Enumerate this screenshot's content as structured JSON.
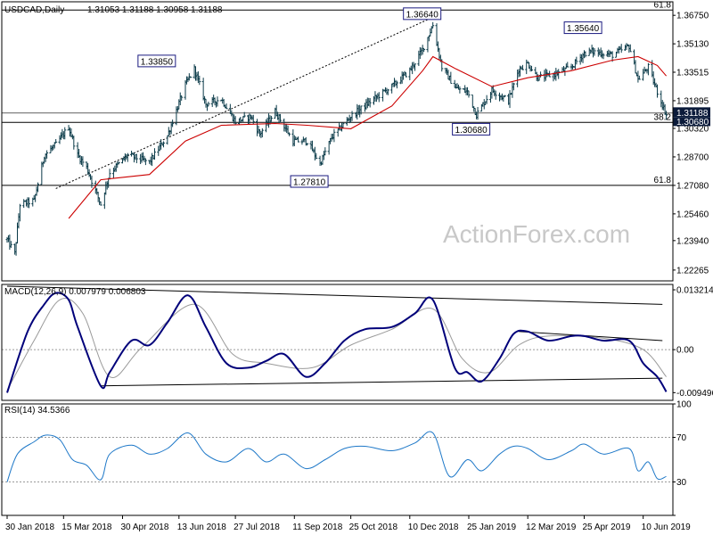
{
  "header": {
    "symbol": "USDCAD,Daily",
    "ohlc": "1.31053 1.31188 1.30958 1.31188"
  },
  "watermark": "ActionForex.com",
  "colors": {
    "price_bars": "#0a3a48",
    "ma_line": "#cc0000",
    "macd_line": "#00007a",
    "signal_line": "#9a9a9a",
    "rsi_line": "#1e78c8",
    "label_border": "#1a1a80",
    "current_price_box": "#0a1a3a",
    "current_price_text": "#ffffff"
  },
  "chart_data": [
    {
      "panel": "price",
      "type": "ohlc",
      "title": "USDCAD,Daily",
      "ylim": [
        1.2165,
        1.3752
      ],
      "yticks": [
        "1.36750",
        "1.35130",
        "1.33515",
        "1.31895",
        "1.30320",
        "1.28700",
        "1.27080",
        "1.25460",
        "1.23940",
        "1.22265"
      ],
      "fib_levels": [
        {
          "label": "61.8",
          "y": 1.3705
        },
        {
          "label": "38.2",
          "y": 1.3066
        },
        {
          "label": "61.8",
          "y": 1.2708
        }
      ],
      "price_labels": [
        {
          "label": "1.33850",
          "x": "2018-06-04",
          "y": 1.3385
        },
        {
          "label": "1.36640",
          "x": "2018-12-28",
          "y": 1.3664
        },
        {
          "label": "1.27810",
          "x": "2018-10-01",
          "y": 1.2781
        },
        {
          "label": "1.30680",
          "x": "2019-01-31",
          "y": 1.3068
        },
        {
          "label": "1.35640",
          "x": "2019-05-01",
          "y": 1.3564
        }
      ],
      "current_price": "1.31188",
      "current_price_secondary": "1.30680",
      "trendline": [
        {
          "x": "2018-03-09",
          "y": 1.269
        },
        {
          "x": "2018-12-28",
          "y": 1.3664
        }
      ],
      "anchors": [
        {
          "x": "2018-01-30",
          "y": 1.24
        },
        {
          "x": "2018-02-05",
          "y": 1.232
        },
        {
          "x": "2018-02-09",
          "y": 1.26
        },
        {
          "x": "2018-02-20",
          "y": 1.262
        },
        {
          "x": "2018-02-28",
          "y": 1.288
        },
        {
          "x": "2018-03-09",
          "y": 1.294
        },
        {
          "x": "2018-03-19",
          "y": 1.304
        },
        {
          "x": "2018-03-26",
          "y": 1.288
        },
        {
          "x": "2018-04-02",
          "y": 1.281
        },
        {
          "x": "2018-04-13",
          "y": 1.26
        },
        {
          "x": "2018-04-20",
          "y": 1.278
        },
        {
          "x": "2018-05-04",
          "y": 1.288
        },
        {
          "x": "2018-05-21",
          "y": 1.284
        },
        {
          "x": "2018-06-04",
          "y": 1.299
        },
        {
          "x": "2018-06-18",
          "y": 1.328
        },
        {
          "x": "2018-06-25",
          "y": 1.337
        },
        {
          "x": "2018-07-04",
          "y": 1.317
        },
        {
          "x": "2018-07-16",
          "y": 1.32
        },
        {
          "x": "2018-07-27",
          "y": 1.307
        },
        {
          "x": "2018-08-08",
          "y": 1.31
        },
        {
          "x": "2018-08-15",
          "y": 1.3
        },
        {
          "x": "2018-08-27",
          "y": 1.313
        },
        {
          "x": "2018-09-10",
          "y": 1.296
        },
        {
          "x": "2018-09-21",
          "y": 1.296
        },
        {
          "x": "2018-10-01",
          "y": 1.283
        },
        {
          "x": "2018-10-10",
          "y": 1.298
        },
        {
          "x": "2018-10-25",
          "y": 1.31
        },
        {
          "x": "2018-11-12",
          "y": 1.32
        },
        {
          "x": "2018-11-26",
          "y": 1.327
        },
        {
          "x": "2018-12-10",
          "y": 1.336
        },
        {
          "x": "2018-12-20",
          "y": 1.348
        },
        {
          "x": "2018-12-28",
          "y": 1.362
        },
        {
          "x": "2019-01-04",
          "y": 1.338
        },
        {
          "x": "2019-01-15",
          "y": 1.326
        },
        {
          "x": "2019-01-24",
          "y": 1.324
        },
        {
          "x": "2019-01-31",
          "y": 1.311
        },
        {
          "x": "2019-02-12",
          "y": 1.325
        },
        {
          "x": "2019-02-25",
          "y": 1.319
        },
        {
          "x": "2019-03-05",
          "y": 1.337
        },
        {
          "x": "2019-03-12",
          "y": 1.34
        },
        {
          "x": "2019-03-20",
          "y": 1.332
        },
        {
          "x": "2019-04-02",
          "y": 1.334
        },
        {
          "x": "2019-04-15",
          "y": 1.338
        },
        {
          "x": "2019-04-25",
          "y": 1.346
        },
        {
          "x": "2019-05-01",
          "y": 1.347
        },
        {
          "x": "2019-05-17",
          "y": 1.345
        },
        {
          "x": "2019-05-30",
          "y": 1.35
        },
        {
          "x": "2019-06-06",
          "y": 1.331
        },
        {
          "x": "2019-06-14",
          "y": 1.338
        },
        {
          "x": "2019-06-21",
          "y": 1.324
        },
        {
          "x": "2019-06-28",
          "y": 1.311
        }
      ],
      "moving_average": [
        {
          "x": "2018-03-19",
          "y": 1.252
        },
        {
          "x": "2018-04-13",
          "y": 1.274
        },
        {
          "x": "2018-05-21",
          "y": 1.277
        },
        {
          "x": "2018-06-18",
          "y": 1.296
        },
        {
          "x": "2018-07-16",
          "y": 1.305
        },
        {
          "x": "2018-08-27",
          "y": 1.306
        },
        {
          "x": "2018-09-21",
          "y": 1.305
        },
        {
          "x": "2018-10-25",
          "y": 1.303
        },
        {
          "x": "2018-11-26",
          "y": 1.316
        },
        {
          "x": "2018-12-20",
          "y": 1.336
        },
        {
          "x": "2018-12-28",
          "y": 1.344
        },
        {
          "x": "2019-01-15",
          "y": 1.337
        },
        {
          "x": "2019-02-12",
          "y": 1.327
        },
        {
          "x": "2019-03-12",
          "y": 1.332
        },
        {
          "x": "2019-04-15",
          "y": 1.336
        },
        {
          "x": "2019-05-17",
          "y": 1.342
        },
        {
          "x": "2019-06-06",
          "y": 1.344
        },
        {
          "x": "2019-06-21",
          "y": 1.339
        },
        {
          "x": "2019-06-28",
          "y": 1.333
        }
      ]
    },
    {
      "panel": "macd",
      "type": "line",
      "title": "MACD(12,26,9) 0.007979 0.006803",
      "ylim": [
        -0.0112,
        0.0144
      ],
      "yticks": [
        "0.013214",
        "0.00",
        "-0.009496"
      ],
      "series": [
        {
          "name": "MACD",
          "points": [
            {
              "x": "2018-01-30",
              "y": -0.0095
            },
            {
              "x": "2018-02-15",
              "y": 0.004
            },
            {
              "x": "2018-02-28",
              "y": 0.01
            },
            {
              "x": "2018-03-09",
              "y": 0.0125
            },
            {
              "x": "2018-03-19",
              "y": 0.011
            },
            {
              "x": "2018-03-26",
              "y": 0.005
            },
            {
              "x": "2018-04-13",
              "y": -0.008
            },
            {
              "x": "2018-04-20",
              "y": -0.005
            },
            {
              "x": "2018-05-07",
              "y": 0.002
            },
            {
              "x": "2018-05-21",
              "y": 0.001
            },
            {
              "x": "2018-06-04",
              "y": 0.006
            },
            {
              "x": "2018-06-20",
              "y": 0.012
            },
            {
              "x": "2018-07-04",
              "y": 0.005
            },
            {
              "x": "2018-07-20",
              "y": -0.003
            },
            {
              "x": "2018-08-06",
              "y": -0.004
            },
            {
              "x": "2018-08-20",
              "y": -0.0025
            },
            {
              "x": "2018-09-03",
              "y": -0.001
            },
            {
              "x": "2018-09-20",
              "y": -0.006
            },
            {
              "x": "2018-10-05",
              "y": -0.003
            },
            {
              "x": "2018-10-20",
              "y": 0.002
            },
            {
              "x": "2018-11-05",
              "y": 0.0045
            },
            {
              "x": "2018-11-26",
              "y": 0.005
            },
            {
              "x": "2018-12-14",
              "y": 0.008
            },
            {
              "x": "2018-12-28",
              "y": 0.011
            },
            {
              "x": "2019-01-14",
              "y": -0.004
            },
            {
              "x": "2019-01-24",
              "y": -0.005
            },
            {
              "x": "2019-02-04",
              "y": -0.007
            },
            {
              "x": "2019-02-18",
              "y": -0.002
            },
            {
              "x": "2019-03-01",
              "y": 0.0035
            },
            {
              "x": "2019-03-12",
              "y": 0.004
            },
            {
              "x": "2019-03-28",
              "y": 0.002
            },
            {
              "x": "2019-04-15",
              "y": 0.003
            },
            {
              "x": "2019-04-25",
              "y": 0.003
            },
            {
              "x": "2019-05-10",
              "y": 0.002
            },
            {
              "x": "2019-05-30",
              "y": 0.002
            },
            {
              "x": "2019-06-10",
              "y": -0.003
            },
            {
              "x": "2019-06-21",
              "y": -0.006
            },
            {
              "x": "2019-06-28",
              "y": -0.0093
            }
          ]
        },
        {
          "name": "Signal",
          "points": [
            {
              "x": "2018-01-30",
              "y": -0.009
            },
            {
              "x": "2018-02-20",
              "y": 0.002
            },
            {
              "x": "2018-03-12",
              "y": 0.011
            },
            {
              "x": "2018-03-30",
              "y": 0.008
            },
            {
              "x": "2018-04-20",
              "y": -0.006
            },
            {
              "x": "2018-05-15",
              "y": 0.0005
            },
            {
              "x": "2018-06-25",
              "y": 0.01
            },
            {
              "x": "2018-07-25",
              "y": -0.001
            },
            {
              "x": "2018-08-20",
              "y": -0.003
            },
            {
              "x": "2018-09-25",
              "y": -0.004
            },
            {
              "x": "2018-10-25",
              "y": 0.001
            },
            {
              "x": "2018-11-26",
              "y": 0.0045
            },
            {
              "x": "2018-12-28",
              "y": 0.009
            },
            {
              "x": "2019-01-20",
              "y": -0.002
            },
            {
              "x": "2019-02-10",
              "y": -0.005
            },
            {
              "x": "2019-03-05",
              "y": 0.001
            },
            {
              "x": "2019-03-28",
              "y": 0.003
            },
            {
              "x": "2019-05-10",
              "y": 0.0025
            },
            {
              "x": "2019-06-10",
              "y": 0.0
            },
            {
              "x": "2019-06-28",
              "y": -0.006
            }
          ]
        }
      ],
      "lines": [
        [
          {
            "x": "2018-01-30",
            "y": 0.014
          },
          {
            "x": "2019-06-25",
            "y": 0.01
          }
        ],
        [
          {
            "x": "2018-04-13",
            "y": -0.008
          },
          {
            "x": "2019-06-25",
            "y": -0.0063
          }
        ],
        [
          {
            "x": "2019-03-05",
            "y": 0.004
          },
          {
            "x": "2019-06-25",
            "y": 0.002
          }
        ]
      ]
    },
    {
      "panel": "rsi",
      "type": "line",
      "title": "RSI(14) 34.5366",
      "ylim": [
        0,
        100
      ],
      "yticks": [
        "100",
        "70",
        "30",
        "0"
      ],
      "levels": [
        70,
        30
      ],
      "series": [
        {
          "name": "RSI",
          "points": [
            {
              "x": "2018-01-30",
              "y": 30
            },
            {
              "x": "2018-02-07",
              "y": 55
            },
            {
              "x": "2018-02-20",
              "y": 66
            },
            {
              "x": "2018-03-01",
              "y": 72
            },
            {
              "x": "2018-03-12",
              "y": 68
            },
            {
              "x": "2018-03-22",
              "y": 50
            },
            {
              "x": "2018-04-02",
              "y": 45
            },
            {
              "x": "2018-04-13",
              "y": 32
            },
            {
              "x": "2018-04-20",
              "y": 55
            },
            {
              "x": "2018-05-07",
              "y": 63
            },
            {
              "x": "2018-05-21",
              "y": 55
            },
            {
              "x": "2018-06-04",
              "y": 60
            },
            {
              "x": "2018-06-20",
              "y": 74
            },
            {
              "x": "2018-07-04",
              "y": 55
            },
            {
              "x": "2018-07-20",
              "y": 48
            },
            {
              "x": "2018-08-06",
              "y": 60
            },
            {
              "x": "2018-08-20",
              "y": 48
            },
            {
              "x": "2018-09-03",
              "y": 55
            },
            {
              "x": "2018-09-20",
              "y": 42
            },
            {
              "x": "2018-10-05",
              "y": 50
            },
            {
              "x": "2018-10-20",
              "y": 60
            },
            {
              "x": "2018-11-05",
              "y": 62
            },
            {
              "x": "2018-11-26",
              "y": 58
            },
            {
              "x": "2018-12-14",
              "y": 65
            },
            {
              "x": "2018-12-28",
              "y": 74
            },
            {
              "x": "2019-01-10",
              "y": 35
            },
            {
              "x": "2019-01-24",
              "y": 50
            },
            {
              "x": "2019-02-04",
              "y": 40
            },
            {
              "x": "2019-02-18",
              "y": 55
            },
            {
              "x": "2019-03-01",
              "y": 62
            },
            {
              "x": "2019-03-12",
              "y": 60
            },
            {
              "x": "2019-03-28",
              "y": 50
            },
            {
              "x": "2019-04-15",
              "y": 58
            },
            {
              "x": "2019-04-25",
              "y": 64
            },
            {
              "x": "2019-05-10",
              "y": 55
            },
            {
              "x": "2019-05-30",
              "y": 60
            },
            {
              "x": "2019-06-06",
              "y": 40
            },
            {
              "x": "2019-06-14",
              "y": 48
            },
            {
              "x": "2019-06-21",
              "y": 33
            },
            {
              "x": "2019-06-28",
              "y": 35
            }
          ]
        }
      ]
    }
  ],
  "xaxis": {
    "ticks": [
      {
        "label": "30 Jan 2018",
        "date": "2018-01-30"
      },
      {
        "label": "15 Mar 2018",
        "date": "2018-03-15"
      },
      {
        "label": "30 Apr 2018",
        "date": "2018-04-30"
      },
      {
        "label": "13 Jun 2018",
        "date": "2018-06-13"
      },
      {
        "label": "27 Jul 2018",
        "date": "2018-07-27"
      },
      {
        "label": "11 Sep 2018",
        "date": "2018-09-11"
      },
      {
        "label": "25 Oct 2018",
        "date": "2018-10-25"
      },
      {
        "label": "10 Dec 2018",
        "date": "2018-12-10"
      },
      {
        "label": "25 Jan 2019",
        "date": "2019-01-25"
      },
      {
        "label": "12 Mar 2019",
        "date": "2019-03-12"
      },
      {
        "label": "25 Apr 2019",
        "date": "2019-04-25"
      },
      {
        "label": "10 Jun 2019",
        "date": "2019-06-10"
      }
    ]
  }
}
